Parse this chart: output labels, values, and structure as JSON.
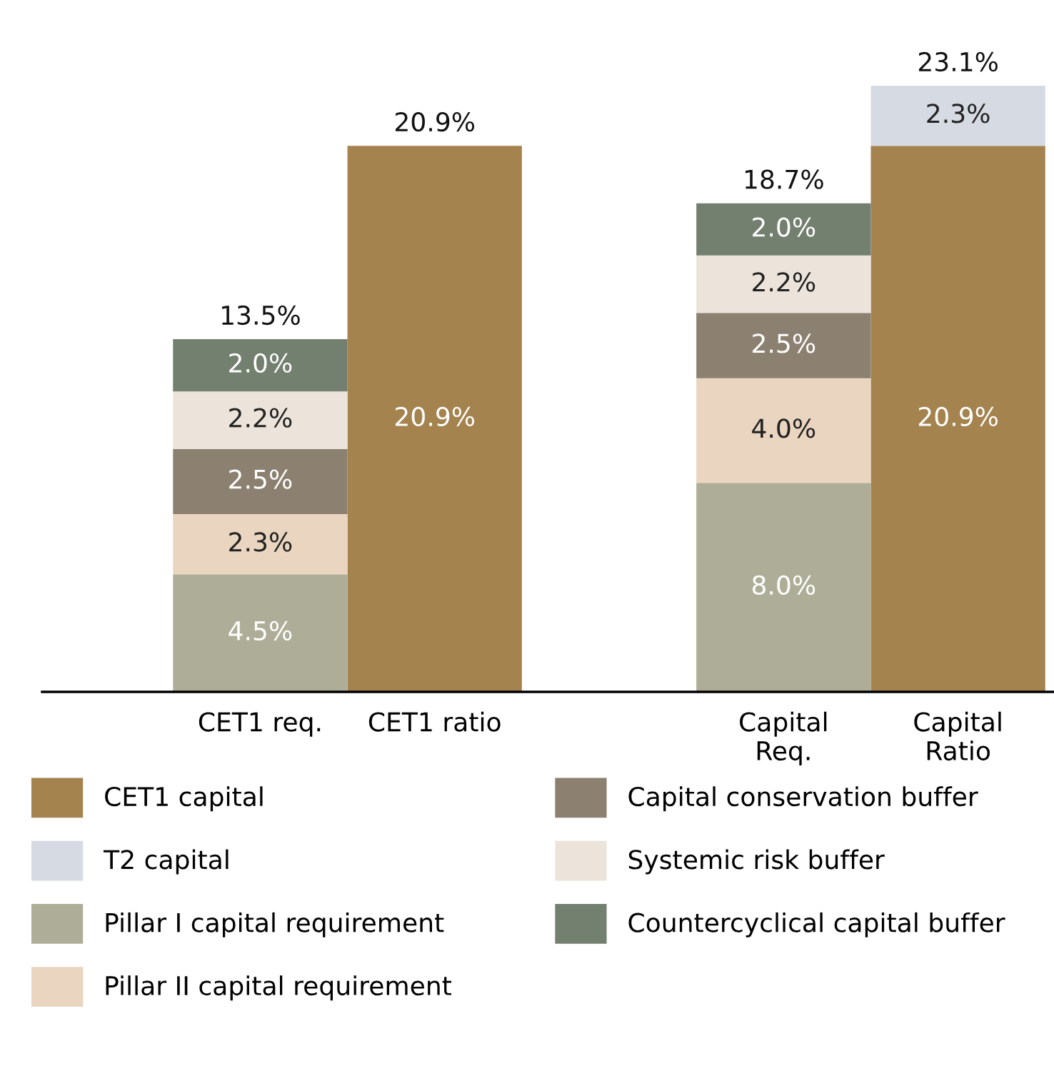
{
  "chart_data": {
    "type": "bar",
    "stacked": true,
    "data_labels": true,
    "legend": "bottom",
    "grid": false,
    "categories": [
      "CET1 req.",
      "CET1 ratio",
      null,
      "Capital\nReq.",
      "Capital\nRatio"
    ],
    "series": [
      {
        "name": "CET1 capital",
        "color": "#a4834f",
        "values": [
          null,
          20.9,
          null,
          null,
          20.9
        ],
        "value_labels": [
          null,
          "20.9%",
          null,
          null,
          "20.9%"
        ]
      },
      {
        "name": "T2 capital",
        "color": "#d6dae2",
        "values": [
          null,
          null,
          null,
          null,
          2.3
        ],
        "value_labels": [
          null,
          null,
          null,
          null,
          "2.3%"
        ]
      },
      {
        "name": "Pillar I capital requirement",
        "color": "#aeae98",
        "values": [
          4.5,
          null,
          null,
          8.0,
          null
        ],
        "value_labels": [
          "4.5%",
          null,
          null,
          "8.0%",
          null
        ]
      },
      {
        "name": "Pillar II capital requirement",
        "color": "#ead5c0",
        "values": [
          2.3,
          null,
          null,
          4.0,
          null
        ],
        "value_labels": [
          "2.3%",
          null,
          null,
          "4.0%",
          null
        ]
      },
      {
        "name": "Capital conservation buffer",
        "color": "#8c8070",
        "values": [
          2.5,
          null,
          null,
          2.5,
          null
        ],
        "value_labels": [
          "2.5%",
          null,
          null,
          "2.5%",
          null
        ]
      },
      {
        "name": "Systemic risk buffer",
        "color": "#ece4da",
        "values": [
          2.2,
          null,
          null,
          2.2,
          null
        ],
        "value_labels": [
          "2.2%",
          null,
          null,
          "2.2%",
          null
        ]
      },
      {
        "name": "Countercyclical capital buffer",
        "color": "#737f6f",
        "values": [
          2.0,
          null,
          null,
          2.0,
          null
        ],
        "value_labels": [
          "2.0%",
          null,
          null,
          "2.0%",
          null
        ]
      }
    ],
    "totals": [
      "13.5%",
      "20.9%",
      null,
      "18.7%",
      "23.1%"
    ]
  }
}
